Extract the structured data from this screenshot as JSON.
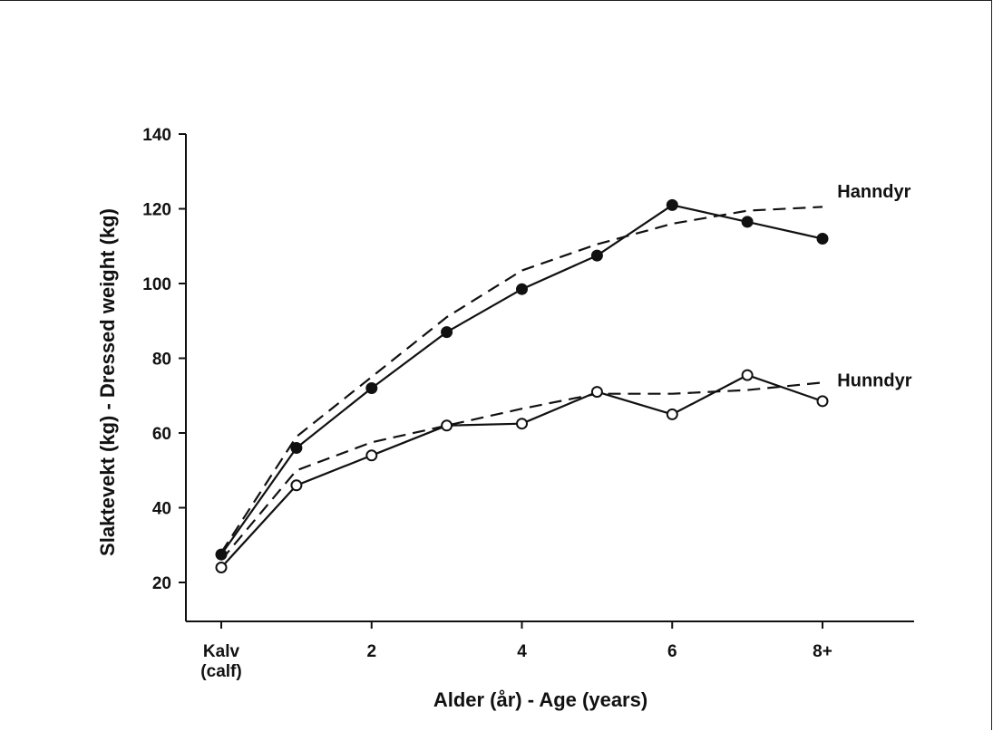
{
  "chart_data": {
    "type": "line",
    "xlabel": "Alder (år) - Age (years)",
    "ylabel": "Slaktevekt (kg) - Dressed weight (kg)",
    "ylim": [
      10,
      140
    ],
    "xlim": [
      -0.5,
      9.5
    ],
    "x_ticks": [
      {
        "value": 0,
        "label": "Kalv",
        "label2": "(calf)"
      },
      {
        "value": 2,
        "label": "2"
      },
      {
        "value": 4,
        "label": "4"
      },
      {
        "value": 6,
        "label": "6"
      },
      {
        "value": 8,
        "label": "8+"
      }
    ],
    "y_ticks": [
      20,
      40,
      60,
      80,
      100,
      120,
      140
    ],
    "grid": false,
    "series": [
      {
        "name": "Hanndyr",
        "marker": "filled-circle",
        "line": "solid",
        "color": "#111111",
        "points": [
          [
            0,
            27.5
          ],
          [
            1,
            56
          ],
          [
            2,
            72
          ],
          [
            3,
            87
          ],
          [
            4,
            98.5
          ],
          [
            5,
            107.5
          ],
          [
            6,
            121
          ],
          [
            7,
            116.5
          ],
          [
            8,
            112
          ]
        ]
      },
      {
        "name": "Hanndyr",
        "marker": "none",
        "line": "dashed",
        "color": "#111111",
        "points": [
          [
            0,
            28
          ],
          [
            1,
            59
          ],
          [
            2,
            75
          ],
          [
            3,
            91
          ],
          [
            4,
            103.5
          ],
          [
            5,
            110.5
          ],
          [
            6,
            116
          ],
          [
            7,
            119.5
          ],
          [
            8,
            120.5
          ]
        ]
      },
      {
        "name": "Hunndyr",
        "marker": "open-circle",
        "line": "solid",
        "color": "#111111",
        "points": [
          [
            0,
            24
          ],
          [
            1,
            46
          ],
          [
            2,
            54
          ],
          [
            3,
            62
          ],
          [
            4,
            62.5
          ],
          [
            5,
            71
          ],
          [
            6,
            65
          ],
          [
            7,
            75.5
          ],
          [
            8,
            68.5
          ]
        ]
      },
      {
        "name": "Hunndyr",
        "marker": "none",
        "line": "dashed",
        "color": "#111111",
        "points": [
          [
            0,
            26
          ],
          [
            1,
            50
          ],
          [
            2,
            57.5
          ],
          [
            3,
            62
          ],
          [
            4,
            66.5
          ],
          [
            5,
            70.5
          ],
          [
            6,
            70.5
          ],
          [
            7,
            71.5
          ],
          [
            8,
            73.5
          ]
        ]
      }
    ],
    "annotations": [
      {
        "text": "Hanndyr",
        "x": 8.1,
        "y": 123
      },
      {
        "text": "Hunndyr",
        "x": 8.1,
        "y": 72.5
      }
    ]
  }
}
